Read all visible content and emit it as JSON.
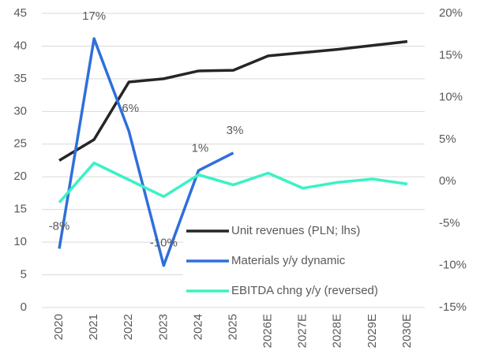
{
  "chart_data": {
    "type": "line",
    "categories": [
      "2020",
      "2021",
      "2022",
      "2023",
      "2024",
      "2025",
      "2026E",
      "2027E",
      "2028E",
      "2029E",
      "2030E"
    ],
    "series": [
      {
        "name": "Unit revenues (PLN; lhs)",
        "color": "#262626",
        "values": [
          22.5,
          25.7,
          34.5,
          35.0,
          36.2,
          36.3,
          38.5,
          39.0,
          39.5,
          40.1,
          40.7
        ]
      },
      {
        "name": "Materials y/y dynamic",
        "color": "#2f6fdc",
        "axis": "y2",
        "values": [
          -8,
          17,
          6,
          -10,
          1.3,
          3.4,
          null,
          null,
          null,
          null,
          null
        ],
        "value_labels": [
          "-8%",
          "17%",
          "6%",
          "-10%",
          "1%",
          "3%",
          null,
          null,
          null,
          null,
          null
        ]
      },
      {
        "name": "EBITDA chng y/y (reversed)",
        "color": "#3af2c4",
        "axis": "y2",
        "values": [
          -2.5,
          2.2,
          0.2,
          -1.8,
          0.8,
          -0.4,
          1.0,
          -0.8,
          -0.1,
          0.3,
          -0.3
        ]
      }
    ],
    "ylim": [
      0,
      45
    ],
    "yticks": [
      0,
      5,
      10,
      15,
      20,
      25,
      30,
      35,
      40,
      45
    ],
    "y2lim": [
      -15,
      20
    ],
    "y2ticks": [
      {
        "value": -15,
        "label": "-15%"
      },
      {
        "value": -10,
        "label": "-10%"
      },
      {
        "value": -5,
        "label": "-5%"
      },
      {
        "value": 0,
        "label": "0%"
      },
      {
        "value": 5,
        "label": "5%"
      },
      {
        "value": 10,
        "label": "10%"
      },
      {
        "value": 15,
        "label": "15%"
      },
      {
        "value": 20,
        "label": "20%"
      }
    ],
    "grid": true
  }
}
